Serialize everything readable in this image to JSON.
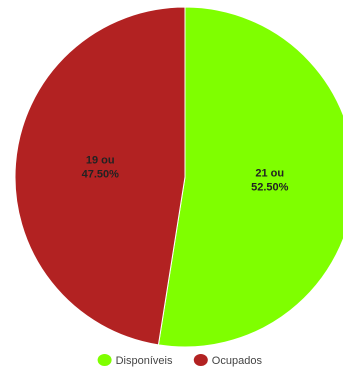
{
  "chart_data": {
    "type": "pie",
    "title": "",
    "slices": [
      {
        "name": "Disponíveis",
        "value": 21,
        "percent": "52.50%",
        "label_line1": "21 ou",
        "label_line2": "52.50%",
        "color": "#7fff00"
      },
      {
        "name": "Ocupados",
        "value": 19,
        "percent": "47.50%",
        "label_line1": "19 ou",
        "label_line2": "47.50%",
        "color": "#b22222"
      }
    ],
    "start_angle_deg": 0,
    "direction": "clockwise",
    "legend": {
      "placement": "bottom-center",
      "items": [
        {
          "label": "Disponíveis",
          "color": "#7fff00"
        },
        {
          "label": "Ocupados",
          "color": "#b22222"
        }
      ]
    }
  }
}
